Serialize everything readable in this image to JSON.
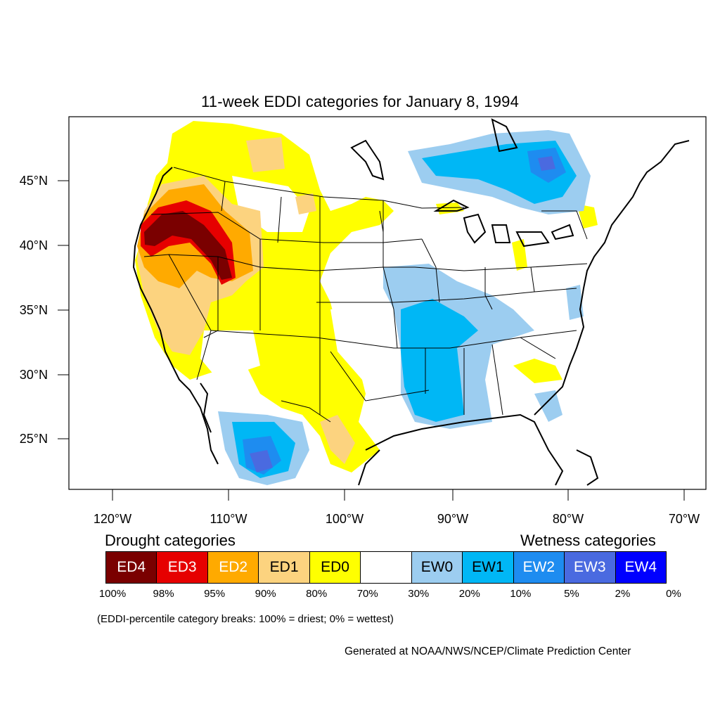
{
  "title": "11-week EDDI categories for January 8, 1994",
  "map": {
    "lat_labels": [
      "45°N",
      "40°N",
      "35°N",
      "30°N",
      "25°N"
    ],
    "lon_labels": [
      "120°W",
      "110°W",
      "100°W",
      "90°W",
      "80°W",
      "70°W"
    ]
  },
  "legend": {
    "drought_heading": "Drought categories",
    "wetness_heading": "Wetness categories",
    "cells": [
      {
        "label": "ED4",
        "color": "#7a0000",
        "text_color": "#ffffff"
      },
      {
        "label": "ED3",
        "color": "#e60000",
        "text_color": "#ffffff"
      },
      {
        "label": "ED2",
        "color": "#ffaa00",
        "text_color": "#ffffff"
      },
      {
        "label": "ED1",
        "color": "#fcd37f",
        "text_color": "#000000"
      },
      {
        "label": "ED0",
        "color": "#ffff00",
        "text_color": "#000000"
      },
      {
        "label": "",
        "color": "#ffffff",
        "text_color": "#000000"
      },
      {
        "label": "EW0",
        "color": "#9ccdf0",
        "text_color": "#000000"
      },
      {
        "label": "EW1",
        "color": "#00b7f5",
        "text_color": "#000000"
      },
      {
        "label": "EW2",
        "color": "#1e8cf0",
        "text_color": "#ffffff"
      },
      {
        "label": "EW3",
        "color": "#4a6ae0",
        "text_color": "#ffffff"
      },
      {
        "label": "EW4",
        "color": "#0000ff",
        "text_color": "#ffffff"
      }
    ],
    "ticks": [
      "100%",
      "98%",
      "95%",
      "90%",
      "80%",
      "70%",
      "30%",
      "20%",
      "10%",
      "5%",
      "2%",
      "0%"
    ]
  },
  "note": "(EDDI-percentile category breaks: 100% = driest; 0% = wettest)",
  "credit": "Generated at NOAA/NWS/NCEP/Climate Prediction Center"
}
